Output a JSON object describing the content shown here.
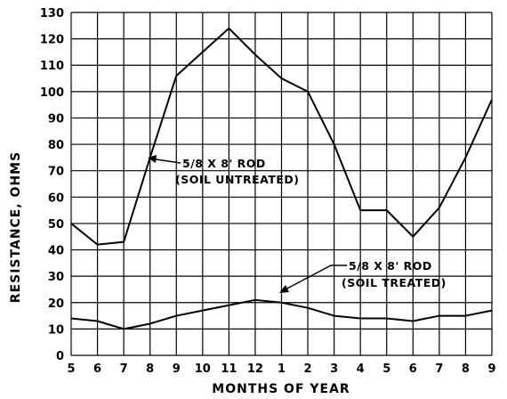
{
  "chart_data": {
    "type": "line",
    "xlabel": "MONTHS OF YEAR",
    "ylabel": "RESISTANCE, OHMS",
    "ylim": [
      0,
      130
    ],
    "yticks": [
      0,
      10,
      20,
      30,
      40,
      50,
      60,
      70,
      80,
      90,
      100,
      110,
      120,
      130
    ],
    "categories": [
      "5",
      "6",
      "7",
      "8",
      "9",
      "10",
      "11",
      "12",
      "1",
      "2",
      "3",
      "4",
      "5",
      "6",
      "7",
      "8",
      "9"
    ],
    "grid": true,
    "series": [
      {
        "name": "5/8 X 8' ROD (SOIL UNTREATED)",
        "values": [
          50,
          42,
          43,
          75,
          106,
          115,
          124,
          114,
          105,
          100,
          80,
          55,
          55,
          45,
          56,
          75,
          97
        ]
      },
      {
        "name": "5/8 X 8' ROD (SOIL TREATED)",
        "values": [
          14,
          13,
          10,
          12,
          15,
          17,
          19,
          21,
          20,
          18,
          15,
          14,
          14,
          13,
          15,
          15,
          17
        ]
      }
    ],
    "annotations": [
      {
        "line1": "5/8 X 8' ROD",
        "line2": "(SOIL UNTREATED)"
      },
      {
        "line1": "5/8 X 8' ROD",
        "line2": "(SOIL TREATED)"
      }
    ],
    "colors": {
      "line": "#000000",
      "grid": "#000000",
      "background": "#ffffff"
    }
  }
}
